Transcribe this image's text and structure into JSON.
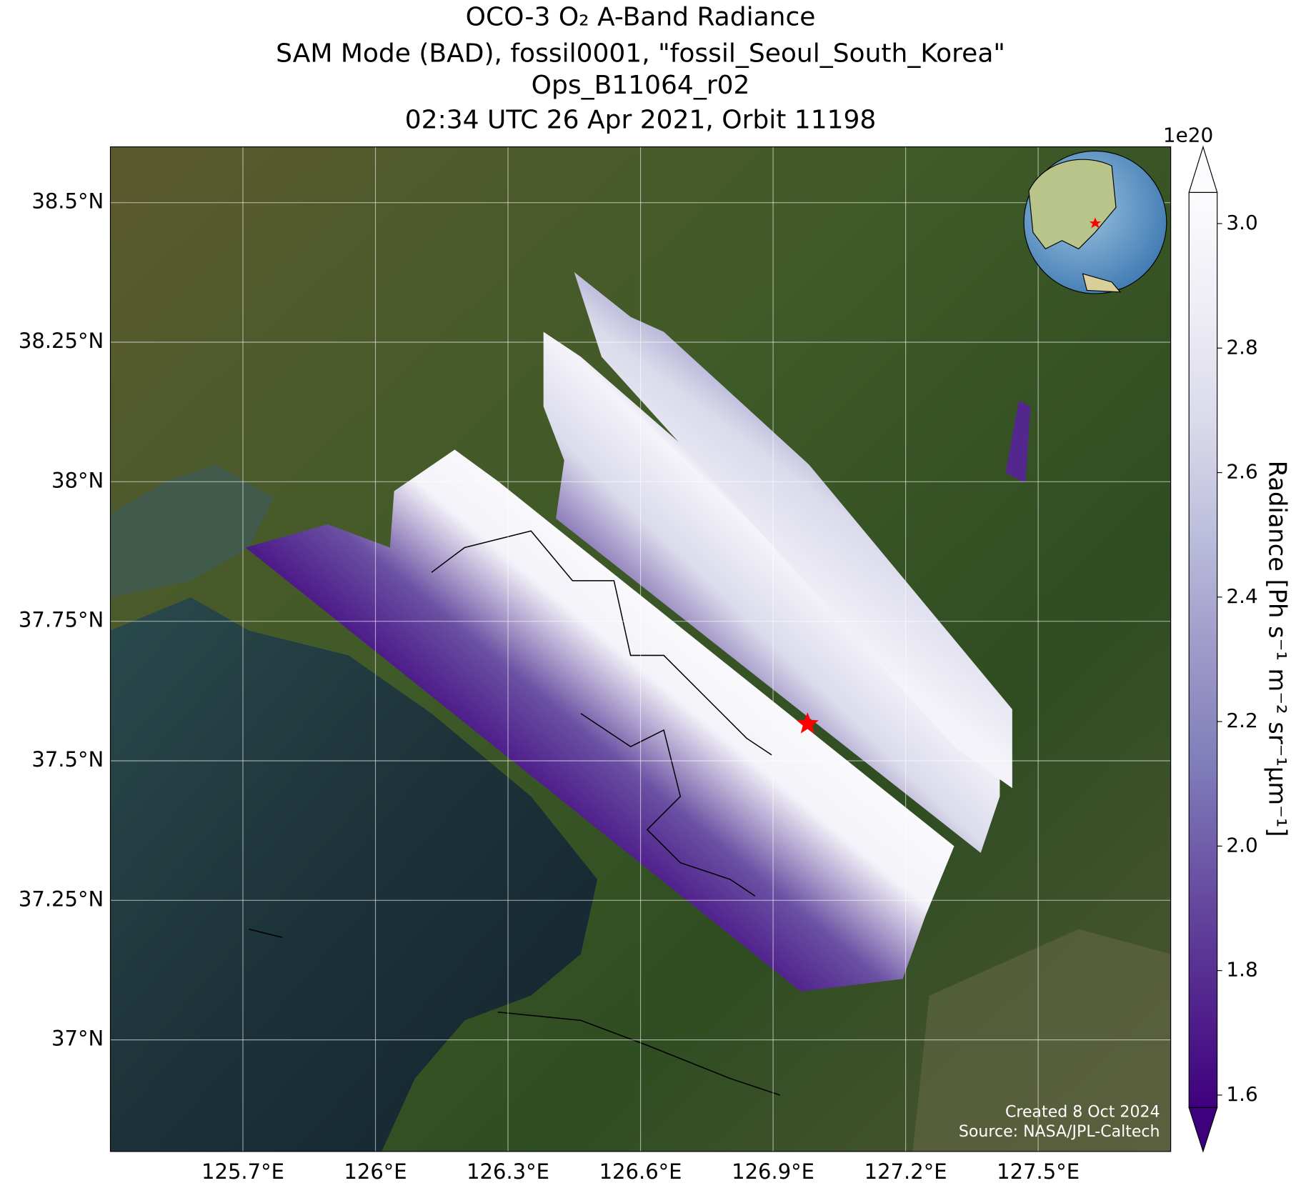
{
  "chart_data": {
    "type": "map",
    "title_lines": [
      "OCO-3 O₂ A-Band Radiance",
      "SAM Mode (BAD), fossil0001, \"fossil_Seoul_South_Korea\"",
      "Ops_B11064_r02",
      "02:34 UTC 26 Apr 2021, Orbit 11198"
    ],
    "xlim": [
      125.4,
      127.8
    ],
    "ylim": [
      36.8,
      38.6
    ],
    "xticks": [
      {
        "value": 125.7,
        "label": "125.7°E"
      },
      {
        "value": 126,
        "label": "126°E"
      },
      {
        "value": 126.3,
        "label": "126.3°E"
      },
      {
        "value": 126.6,
        "label": "126.6°E"
      },
      {
        "value": 126.9,
        "label": "126.9°E"
      },
      {
        "value": 127.2,
        "label": "127.2°E"
      },
      {
        "value": 127.5,
        "label": "127.5°E"
      }
    ],
    "yticks": [
      {
        "value": 37,
        "label": "37°N"
      },
      {
        "value": 37.25,
        "label": "37.25°N"
      },
      {
        "value": 37.5,
        "label": "37.5°N"
      },
      {
        "value": 37.75,
        "label": "37.75°N"
      },
      {
        "value": 38,
        "label": "38°N"
      },
      {
        "value": 38.25,
        "label": "38.25°N"
      },
      {
        "value": 38.5,
        "label": "38.5°N"
      }
    ],
    "grid": true,
    "target": {
      "lon": 126.978,
      "lat": 37.566,
      "color": "#ff0000"
    },
    "colorbar": {
      "label": "Radiance [Ph s⁻¹ m⁻² sr⁻¹µm⁻¹]",
      "offset_label": "1e20",
      "lim": [
        1.58,
        3.05
      ],
      "ticks": [
        1.6,
        1.8,
        {
          "value": 2,
          "label": "2.0"
        },
        2.2,
        2.4,
        2.6,
        2.8,
        {
          "value": 3,
          "label": "3.0"
        }
      ],
      "colormap": [
        "#3f007d",
        "#54278f",
        "#6a51a3",
        "#807dba",
        "#9e9ac8",
        "#bcbddc",
        "#dadaeb",
        "#efedf5",
        "#fcfbfd"
      ]
    },
    "credits": [
      "Created 8 Oct 2024",
      "Source: NASA/JPL-Caltech"
    ]
  }
}
